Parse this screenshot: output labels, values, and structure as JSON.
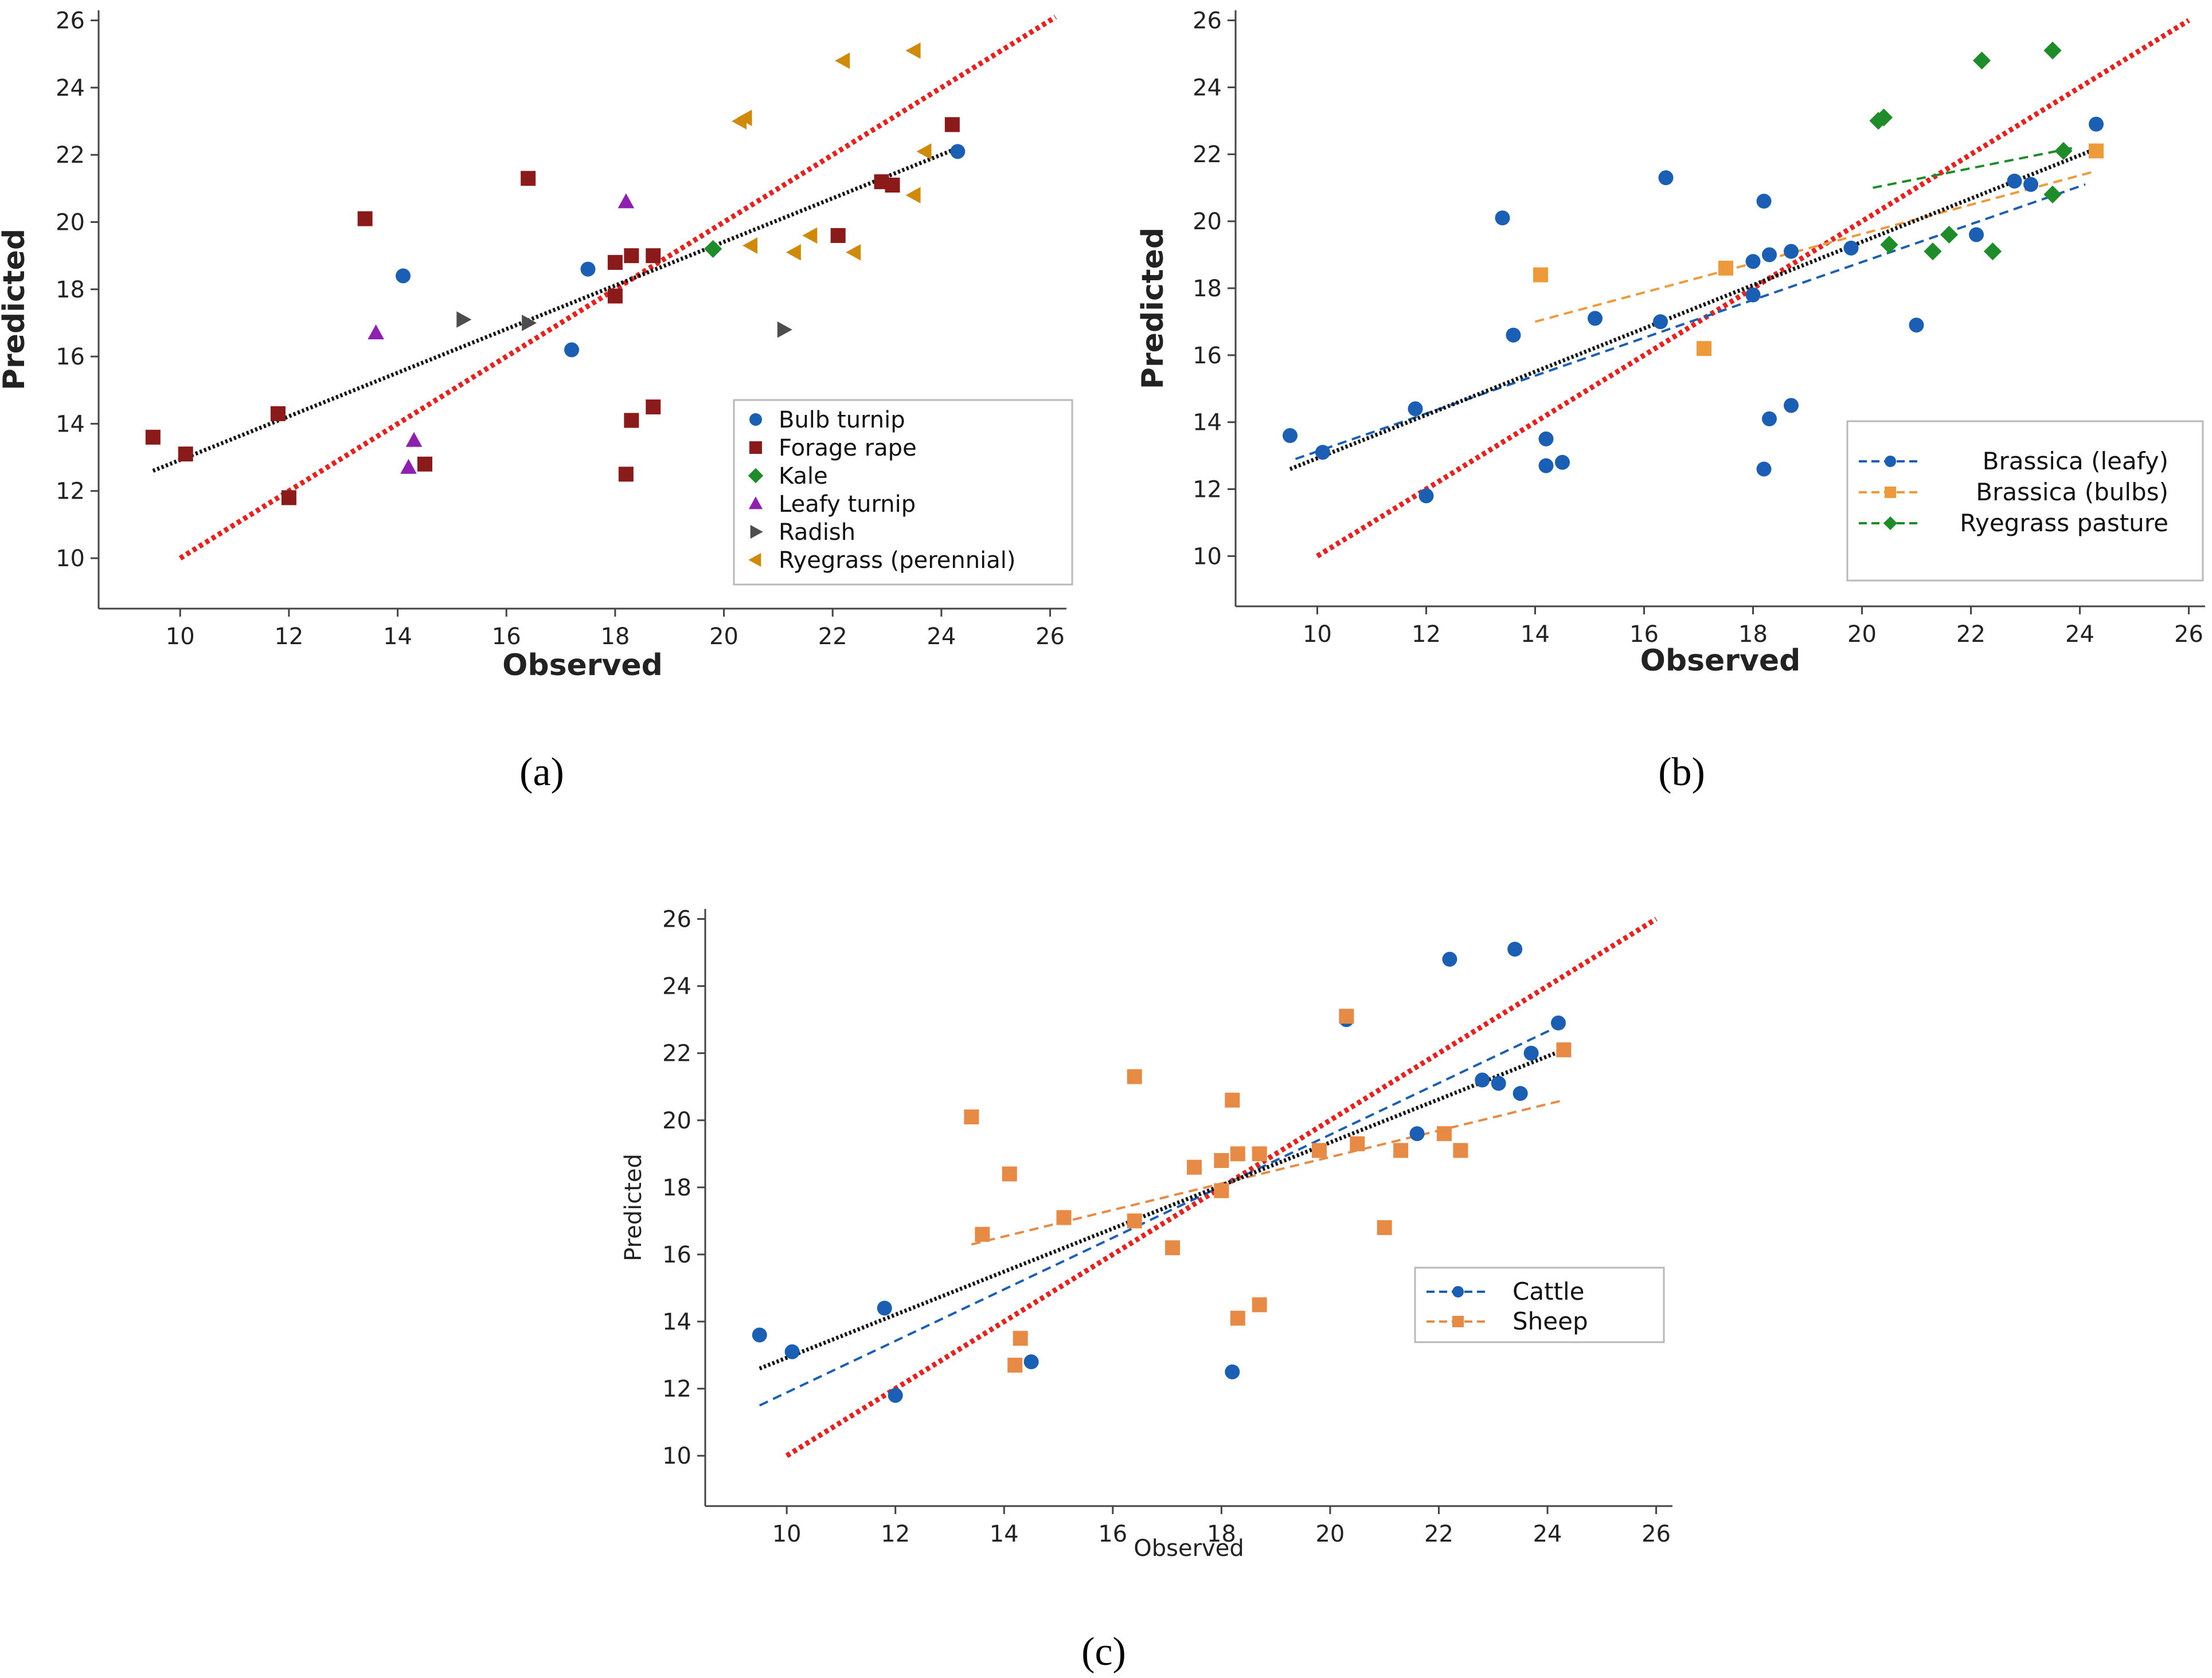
{
  "figure": {
    "captions": [
      "(a)",
      "(b)",
      "(c)"
    ],
    "line_colors": {
      "one_to_one": "#e8211c",
      "overall_fit": "#111111"
    }
  },
  "chart_data": [
    {
      "panel": "a",
      "type": "scatter",
      "caption": "(a)",
      "xlabel": "Observed",
      "ylabel": "Predicted",
      "xlim": [
        8.5,
        26.3
      ],
      "ylim": [
        8.5,
        26.3
      ],
      "xticks": [
        10,
        12,
        14,
        16,
        18,
        20,
        22,
        24,
        26
      ],
      "yticks": [
        10,
        12,
        14,
        16,
        18,
        20,
        22,
        24,
        26
      ],
      "grid": false,
      "legend_position": "bottom-right",
      "one_to_one_line": {
        "x": [
          10,
          26.1
        ],
        "y": [
          10,
          26.1
        ]
      },
      "fit_line": {
        "x": [
          9.5,
          24.3
        ],
        "y": [
          12.6,
          22.2
        ]
      },
      "series": [
        {
          "name": "Bulb turnip",
          "marker": "circle",
          "color": "#1a5fb4",
          "x": [
            14.1,
            17.5,
            17.2,
            24.3
          ],
          "y": [
            18.4,
            18.6,
            16.2,
            22.1
          ]
        },
        {
          "name": "Forage rape",
          "marker": "square",
          "color": "#8b1a1a",
          "x": [
            9.5,
            10.1,
            11.8,
            12.0,
            13.4,
            14.5,
            16.4,
            18.0,
            18.0,
            18.3,
            18.7,
            18.2,
            18.3,
            18.7,
            22.1,
            22.9,
            23.1,
            24.2
          ],
          "y": [
            13.6,
            13.1,
            14.3,
            11.8,
            20.1,
            12.8,
            21.3,
            18.8,
            17.8,
            19.0,
            19.0,
            12.5,
            14.1,
            14.5,
            19.6,
            21.2,
            21.1,
            22.9
          ]
        },
        {
          "name": "Kale",
          "marker": "diamond",
          "color": "#1e8c28",
          "x": [
            19.8
          ],
          "y": [
            19.2
          ]
        },
        {
          "name": "Leafy turnip",
          "marker": "triangle-up",
          "color": "#8e1fb0",
          "x": [
            13.6,
            14.3,
            14.2,
            18.2
          ],
          "y": [
            16.7,
            13.5,
            12.7,
            20.6
          ]
        },
        {
          "name": "Radish",
          "marker": "triangle-right",
          "color": "#4d4d4d",
          "x": [
            15.2,
            16.4,
            21.1
          ],
          "y": [
            17.1,
            17.0,
            16.8
          ]
        },
        {
          "name": "Ryegrass (perennial)",
          "marker": "triangle-left",
          "color": "#d08a0a",
          "x": [
            20.3,
            20.4,
            22.2,
            23.5,
            23.7,
            20.5,
            21.3,
            21.6,
            22.4,
            23.5
          ],
          "y": [
            23.0,
            23.1,
            24.8,
            25.1,
            22.1,
            19.3,
            19.1,
            19.6,
            19.1,
            20.8
          ]
        }
      ]
    },
    {
      "panel": "b",
      "type": "scatter",
      "caption": "(b)",
      "xlabel": "Observed",
      "ylabel": "Predicted",
      "xlim": [
        8.5,
        26.3
      ],
      "ylim": [
        8.5,
        26.3
      ],
      "xticks": [
        10,
        12,
        14,
        16,
        18,
        20,
        22,
        24,
        26
      ],
      "yticks": [
        10,
        12,
        14,
        16,
        18,
        20,
        22,
        24,
        26
      ],
      "grid": false,
      "legend_position": "bottom-right",
      "one_to_one_line": {
        "x": [
          10,
          26
        ],
        "y": [
          10,
          26
        ]
      },
      "fit_line": {
        "x": [
          9.5,
          24.2
        ],
        "y": [
          12.6,
          22.1
        ]
      },
      "series": [
        {
          "name": "Brassica (leafy)",
          "marker": "circle",
          "color": "#1a5fb4",
          "fit": {
            "x": [
              9.6,
              24.1
            ],
            "y": [
              12.9,
              21.1
            ]
          },
          "x": [
            9.5,
            10.1,
            11.8,
            12.0,
            13.4,
            13.6,
            14.2,
            14.2,
            14.5,
            15.1,
            16.3,
            16.4,
            18.0,
            18.0,
            18.2,
            18.3,
            18.3,
            18.7,
            18.7,
            18.2,
            19.8,
            21.0,
            22.1,
            22.8,
            23.1,
            24.3
          ],
          "y": [
            13.6,
            13.1,
            14.4,
            11.8,
            20.1,
            16.6,
            13.5,
            12.7,
            12.8,
            17.1,
            17.0,
            21.3,
            18.8,
            17.8,
            20.6,
            19.0,
            14.1,
            19.1,
            14.5,
            12.6,
            19.2,
            16.9,
            19.6,
            21.2,
            21.1,
            22.9
          ]
        },
        {
          "name": "Brassica (bulbs)",
          "marker": "square",
          "color": "#ee9a3a",
          "fit": {
            "x": [
              14.0,
              24.3
            ],
            "y": [
              17.0,
              21.5
            ]
          },
          "x": [
            14.1,
            17.5,
            17.1,
            24.3
          ],
          "y": [
            18.4,
            18.6,
            16.2,
            22.1
          ]
        },
        {
          "name": "Ryegrass pasture",
          "marker": "diamond",
          "color": "#1e8c28",
          "fit": {
            "x": [
              20.2,
              23.9
            ],
            "y": [
              21.0,
              22.2
            ]
          },
          "x": [
            20.3,
            20.4,
            22.2,
            23.5,
            23.7,
            20.5,
            21.3,
            21.6,
            22.4,
            23.5
          ],
          "y": [
            23.0,
            23.1,
            24.8,
            25.1,
            22.1,
            19.3,
            19.1,
            19.6,
            19.1,
            20.8
          ]
        }
      ]
    },
    {
      "panel": "c",
      "type": "scatter",
      "caption": "(c)",
      "xlabel": "Observed",
      "ylabel": "Predicted",
      "xlim": [
        8.5,
        26.3
      ],
      "ylim": [
        8.5,
        26.3
      ],
      "xticks": [
        10,
        12,
        14,
        16,
        18,
        20,
        22,
        24,
        26
      ],
      "yticks": [
        10,
        12,
        14,
        16,
        18,
        20,
        22,
        24,
        26
      ],
      "grid": false,
      "legend_position": "right",
      "one_to_one_line": {
        "x": [
          10,
          26
        ],
        "y": [
          10,
          26
        ]
      },
      "fit_line": {
        "x": [
          9.5,
          24.3
        ],
        "y": [
          12.6,
          22.1
        ]
      },
      "series": [
        {
          "name": "Cattle",
          "marker": "circle",
          "color": "#1a5fb4",
          "fit": {
            "x": [
              9.5,
              24.2
            ],
            "y": [
              11.5,
              22.8
            ]
          },
          "x": [
            9.5,
            10.1,
            11.8,
            12.0,
            14.5,
            18.2,
            20.3,
            22.2,
            23.4,
            22.8,
            23.1,
            23.7,
            23.5,
            24.2,
            21.6
          ],
          "y": [
            13.6,
            13.1,
            14.4,
            11.8,
            12.8,
            12.5,
            23.0,
            24.8,
            25.1,
            21.2,
            21.1,
            22.0,
            20.8,
            22.9,
            19.6
          ]
        },
        {
          "name": "Sheep",
          "marker": "square",
          "color": "#e68a45",
          "fit": {
            "x": [
              13.4,
              24.3
            ],
            "y": [
              16.3,
              20.6
            ]
          },
          "x": [
            13.4,
            13.6,
            14.1,
            14.3,
            14.2,
            15.1,
            16.4,
            16.4,
            17.1,
            17.5,
            18.0,
            18.2,
            18.3,
            18.3,
            18.7,
            18.7,
            18.0,
            19.8,
            20.3,
            20.5,
            21.0,
            21.3,
            22.1,
            22.4,
            24.3
          ],
          "y": [
            20.1,
            16.6,
            18.4,
            13.5,
            12.7,
            17.1,
            17.0,
            21.3,
            16.2,
            18.6,
            18.8,
            20.6,
            19.0,
            14.1,
            19.0,
            14.5,
            17.9,
            19.1,
            23.1,
            19.3,
            16.8,
            19.1,
            19.6,
            19.1,
            22.1
          ]
        }
      ]
    }
  ]
}
